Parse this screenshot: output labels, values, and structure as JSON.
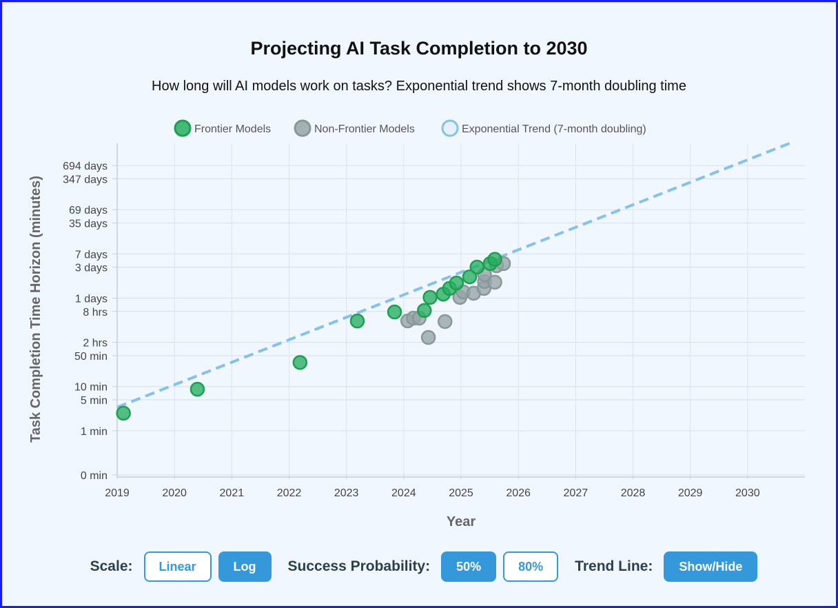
{
  "chart_data": {
    "type": "scatter",
    "title": "Projecting AI Task Completion to 2030",
    "subtitle": "How long will AI models work on tasks? Exponential trend shows 7-month doubling time",
    "xlabel": "Year",
    "ylabel": "Task Completion Time Horizon (minutes)",
    "xlim": [
      2019,
      2031
    ],
    "ylim": [
      0.1,
      3160000
    ],
    "yscale": "log",
    "grid": true,
    "legend_placement": "top",
    "x_ticks": [
      2019,
      2020,
      2021,
      2022,
      2023,
      2024,
      2025,
      2026,
      2027,
      2028,
      2029,
      2030
    ],
    "y_ticks": [
      {
        "value": 0.1,
        "label": "0 min"
      },
      {
        "value": 1,
        "label": "1 min"
      },
      {
        "value": 5,
        "label": "5 min"
      },
      {
        "value": 10,
        "label": "10 min"
      },
      {
        "value": 50,
        "label": "50 min"
      },
      {
        "value": 100,
        "label": "2 hrs"
      },
      {
        "value": 500,
        "label": "8 hrs"
      },
      {
        "value": 1000,
        "label": "1 days"
      },
      {
        "value": 5000,
        "label": "3 days"
      },
      {
        "value": 10000,
        "label": "7 days"
      },
      {
        "value": 50000,
        "label": "35 days"
      },
      {
        "value": 100000,
        "label": "69 days"
      },
      {
        "value": 500000,
        "label": "347 days"
      },
      {
        "value": 1000000,
        "label": "694 days"
      }
    ],
    "series": [
      {
        "name": "Frontier Models",
        "color": "#27ae60",
        "points": [
          [
            2019.11,
            2.5
          ],
          [
            2020.4,
            8.7
          ],
          [
            2022.19,
            35
          ],
          [
            2023.19,
            304
          ],
          [
            2023.84,
            486
          ],
          [
            2024.36,
            525
          ],
          [
            2024.46,
            1040
          ],
          [
            2024.69,
            1230
          ],
          [
            2024.8,
            1660
          ],
          [
            2024.92,
            2190
          ],
          [
            2025.15,
            3030
          ],
          [
            2025.28,
            5030
          ],
          [
            2025.51,
            6030
          ],
          [
            2025.59,
            7540
          ]
        ]
      },
      {
        "name": "Non-Frontier Models",
        "color": "#95a5a6",
        "points": [
          [
            2024.07,
            305
          ],
          [
            2024.17,
            352
          ],
          [
            2024.27,
            352
          ],
          [
            2024.43,
            129
          ],
          [
            2024.72,
            295
          ],
          [
            2024.98,
            1040
          ],
          [
            2025.04,
            1380
          ],
          [
            2025.22,
            1290
          ],
          [
            2025.4,
            1660
          ],
          [
            2025.41,
            2370
          ],
          [
            2025.41,
            3390
          ],
          [
            2025.59,
            2290
          ],
          [
            2025.62,
            5400
          ],
          [
            2025.74,
            6030
          ]
        ]
      },
      {
        "name": "Exponential Trend (7-month doubling)",
        "color": "#85c1e9",
        "type": "dashed-line",
        "points": [
          [
            2019,
            3.4
          ],
          [
            2030.73,
            3160000
          ]
        ]
      }
    ]
  },
  "controls": {
    "scale_label": "Scale:",
    "linear": "Linear",
    "log": "Log",
    "prob_label": "Success Probability:",
    "p50": "50%",
    "p80": "80%",
    "trend_label": "Trend Line:",
    "toggle": "Show/Hide"
  }
}
